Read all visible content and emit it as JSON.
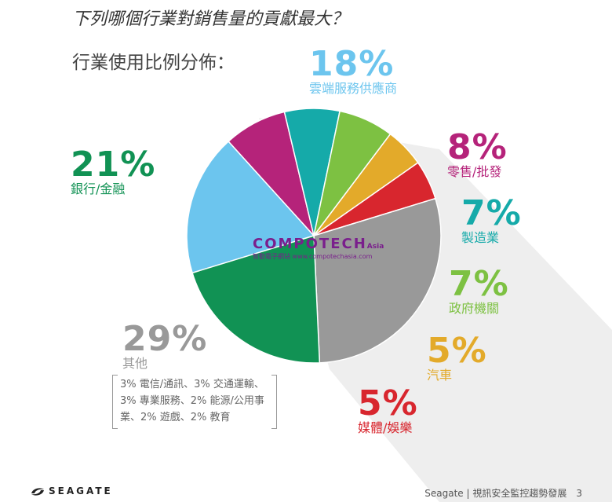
{
  "question": "下列哪個行業對銷售量的貢獻最大？",
  "chart_data": {
    "type": "pie",
    "title": "行業使用比例分佈：",
    "slices": [
      {
        "label": "雲端服務供應商",
        "value": 18,
        "value_label": "18%",
        "color": "#6cc5ee"
      },
      {
        "label": "零售/批發",
        "value": 8,
        "value_label": "8%",
        "color": "#b5237a"
      },
      {
        "label": "製造業",
        "value": 7,
        "value_label": "7%",
        "color": "#15aaa9"
      },
      {
        "label": "政府機關",
        "value": 7,
        "value_label": "7%",
        "color": "#7dc142"
      },
      {
        "label": "汽車",
        "value": 5,
        "value_label": "5%",
        "color": "#e3aa2a"
      },
      {
        "label": "媒體/娛樂",
        "value": 5,
        "value_label": "5%",
        "color": "#d8262e"
      },
      {
        "label": "其他",
        "value": 29,
        "value_label": "29%",
        "color": "#999999"
      },
      {
        "label": "銀行/金融",
        "value": 21,
        "value_label": "21%",
        "color": "#119254"
      }
    ],
    "annotations": {
      "other_breakdown": "3% 電信/通訊、3% 交通運輸、3% 專業服務、2% 能源/公用事業、2% 遊戲、2% 教育"
    }
  },
  "watermark": {
    "brand": "COMPOTECH",
    "suffix": "Asia",
    "tagline": "智動電子網站 www.compotechasia.com"
  },
  "footer": {
    "text": "Seagate | 視訊安全監控趨勢發展",
    "page": "3"
  },
  "logo": {
    "text": "SEAGATE"
  }
}
